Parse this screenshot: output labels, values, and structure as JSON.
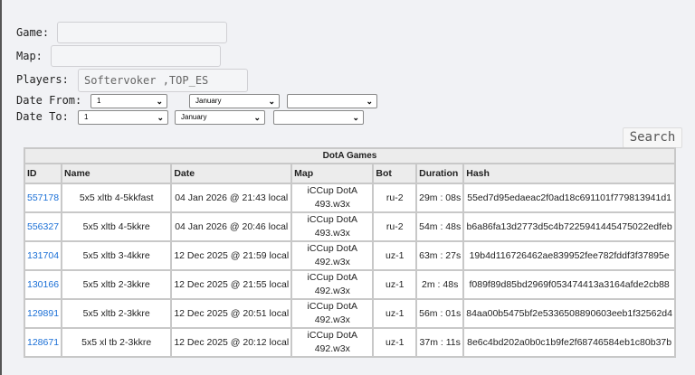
{
  "form": {
    "game_label": "Game:",
    "game_value": "",
    "map_label": "Map:",
    "map_value": "",
    "players_label": "Players:",
    "players_value": "Softervoker ,TOP_ES",
    "date_from_label": "Date From:",
    "date_from": {
      "day": "1",
      "month": "January",
      "year": ""
    },
    "date_to_label": "Date To:",
    "date_to": {
      "day": "1",
      "month": "January",
      "year": ""
    },
    "search_label": "Search"
  },
  "table": {
    "title": "DotA Games",
    "columns": [
      "ID",
      "Name",
      "Date",
      "Map",
      "Bot",
      "Duration",
      "Hash"
    ],
    "rows": [
      {
        "id": "557178",
        "name": "5x5 xltb 4-5kkfast",
        "date": "04 Jan 2026 @ 21:43 local",
        "map1": "iCCup DotA",
        "map2": "493.w3x",
        "bot": "ru-2",
        "duration": "29m : 08s",
        "hash": "55ed7d95edaeac2f0ad18c691101f779813941d1"
      },
      {
        "id": "556327",
        "name": "5x5 xltb 4-5kkre",
        "date": "04 Jan 2026 @ 20:46 local",
        "map1": "iCCup DotA",
        "map2": "493.w3x",
        "bot": "ru-2",
        "duration": "54m : 48s",
        "hash": "b6a86fa13d2773d5c4b7225941445475022edfeb"
      },
      {
        "id": "131704",
        "name": "5x5 xltb 3-4kkre",
        "date": "12 Dec 2025 @ 21:59 local",
        "map1": "iCCup DotA",
        "map2": "492.w3x",
        "bot": "uz-1",
        "duration": "63m : 27s",
        "hash": "19b4d116726462ae839952fee782fddf3f37895e"
      },
      {
        "id": "130166",
        "name": "5x5 xltb 2-3kkre",
        "date": "12 Dec 2025 @ 21:55 local",
        "map1": "iCCup DotA",
        "map2": "492.w3x",
        "bot": "uz-1",
        "duration": "2m : 48s",
        "hash": "f089f89d85bd2969f053474413a3164afde2cb88"
      },
      {
        "id": "129891",
        "name": "5x5 xltb 2-3kkre",
        "date": "12 Dec 2025 @ 20:51 local",
        "map1": "iCCup DotA",
        "map2": "492.w3x",
        "bot": "uz-1",
        "duration": "56m : 01s",
        "hash": "84aa00b5475bf2e5336508890603eeb1f32562d4"
      },
      {
        "id": "128671",
        "name": "5x5 xl tb 2-3kkre",
        "date": "12 Dec 2025 @ 20:12 local",
        "map1": "iCCup DotA",
        "map2": "492.w3x",
        "bot": "uz-1",
        "duration": "37m : 11s",
        "hash": "8e6c4bd202a0b0c1b9fe2f68746584eb1c80b37b"
      }
    ]
  },
  "colors": {
    "link": "#1a6fd6",
    "header_bg": "#ececec"
  }
}
